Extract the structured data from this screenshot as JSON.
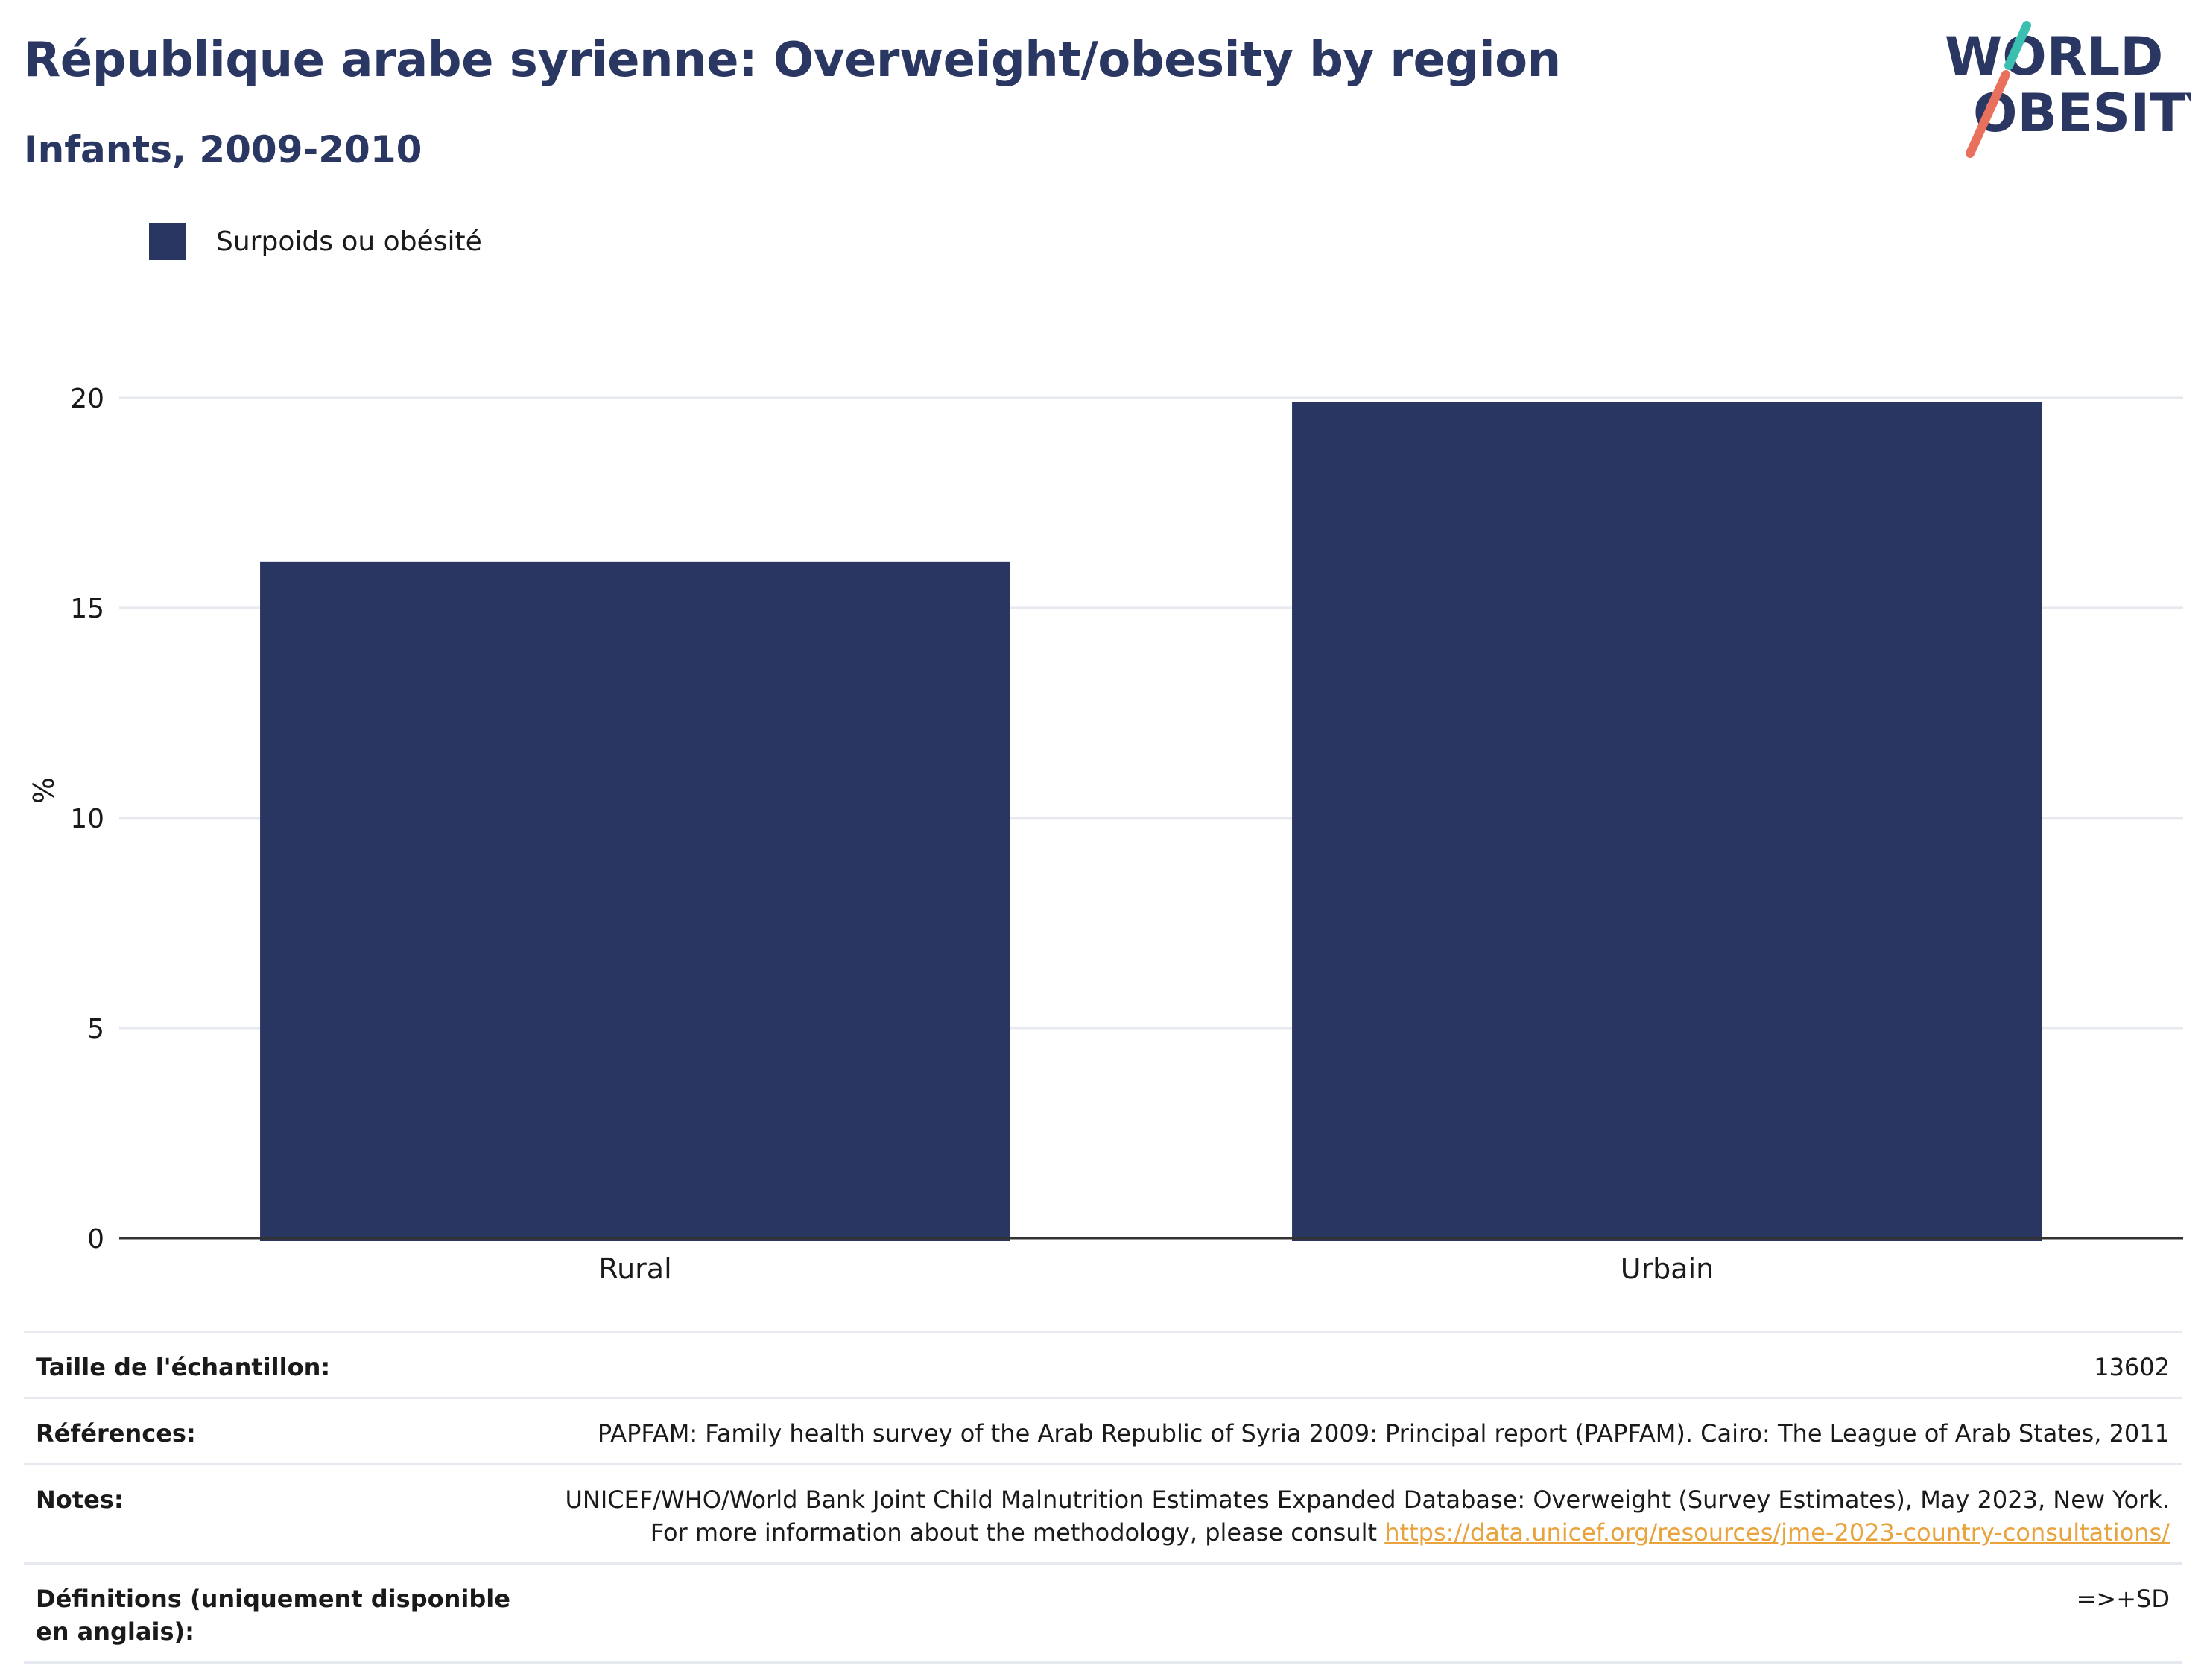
{
  "header": {
    "title": "République arabe syrienne: Overweight/obesity by region",
    "subtitle": "Infants, 2009-2010"
  },
  "logo": {
    "line1": "WORLD",
    "line2": "OBESITY",
    "colors": {
      "text": "#2a3762",
      "slash_top": "#3bbfb0",
      "slash_bottom": "#e9705c"
    }
  },
  "legend": {
    "label": "Surpoids ou obésité",
    "color": "#2a3662"
  },
  "chart_data": {
    "type": "bar",
    "categories": [
      "Rural",
      "Urbain"
    ],
    "series": [
      {
        "name": "Surpoids ou obésité",
        "values": [
          16.1,
          19.9
        ],
        "color": "#2a3662"
      }
    ],
    "ylabel": "%",
    "xlabel": "",
    "ylim": [
      0,
      20.6
    ],
    "yticks": [
      0,
      5,
      10,
      15,
      20
    ],
    "grid": true,
    "legend_position": "top-left"
  },
  "info": {
    "sample_label": "Taille de l'échantillon:",
    "sample_value": "13602",
    "references_label": "Références:",
    "references_value": "PAPFAM: Family health survey of the Arab Republic of Syria 2009: Principal report (PAPFAM). Cairo: The League of Arab States, 2011",
    "notes_label": "Notes:",
    "notes_value": "UNICEF/WHO/World Bank Joint Child Malnutrition Estimates Expanded Database: Overweight (Survey Estimates), May 2023, New York. For more information about the methodology, please consult ",
    "notes_link": "https://data.unicef.org/resources/jme-2023-country-consultations/",
    "definitions_label": "Définitions (uniquement disponible en anglais):",
    "definitions_value": "=>+SD"
  }
}
